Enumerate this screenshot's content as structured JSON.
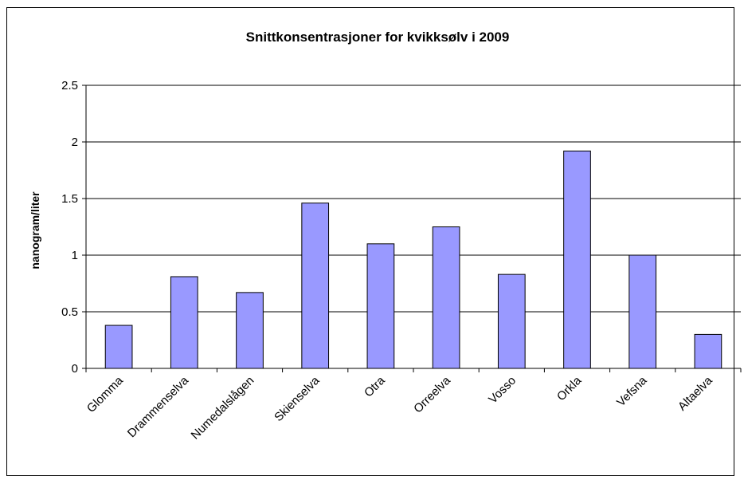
{
  "chart_data": {
    "type": "bar",
    "title": "Snittkonsentrasjoner for kvikksølv i 2009",
    "xlabel": "",
    "ylabel": "nanogram/liter",
    "categories": [
      "Glomma",
      "Drammenselva",
      "Numedalslågen",
      "Skienselva",
      "Otra",
      "Orreelva",
      "Vosso",
      "Orkla",
      "Vefsna",
      "Altaelva"
    ],
    "values": [
      0.38,
      0.81,
      0.67,
      1.46,
      1.1,
      1.25,
      0.83,
      1.92,
      1.0,
      0.3
    ],
    "ylim": [
      0,
      2.5
    ],
    "yticks": [
      "0",
      "0.5",
      "1",
      "1.5",
      "2",
      "2.5"
    ],
    "grid": true,
    "legend": "none",
    "colors": {
      "bar_fill": "#9999ff",
      "bar_stroke": "#000000"
    }
  }
}
